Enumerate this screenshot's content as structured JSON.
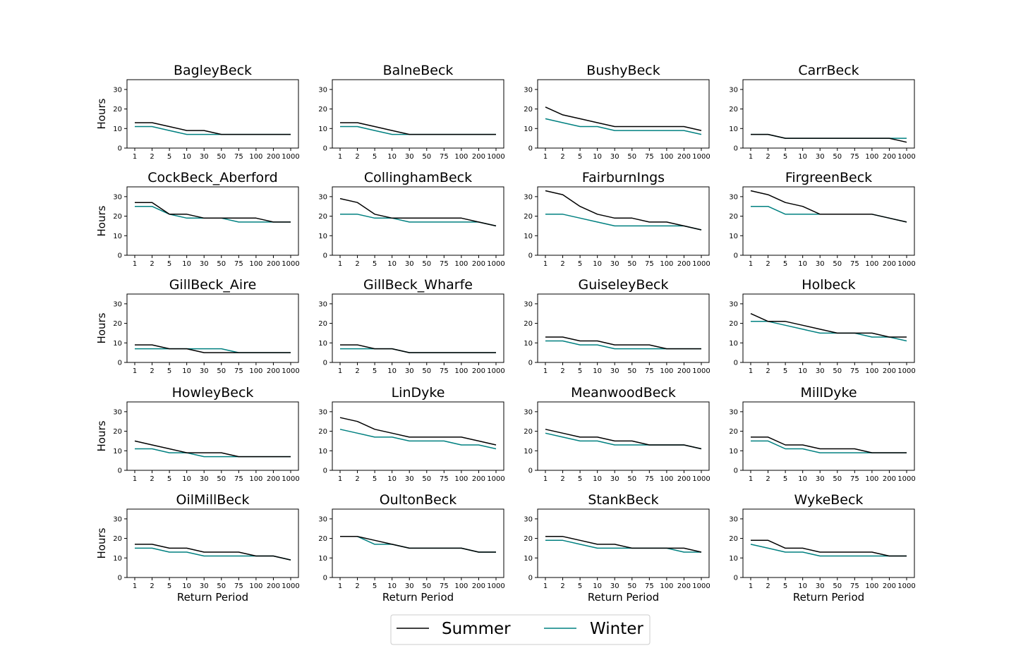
{
  "chart_data": {
    "type": "line",
    "layout": "small-multiples",
    "categories": [
      "1",
      "2",
      "5",
      "10",
      "30",
      "50",
      "75",
      "100",
      "200",
      "1000"
    ],
    "xlabel": "Return Period",
    "ylabel": "Hours",
    "ylim": [
      0,
      35
    ],
    "yticks": [
      0,
      10,
      20,
      30
    ],
    "grid": false,
    "legend": {
      "placement": "bottom-center",
      "entries": [
        {
          "name": "Summer",
          "color": "#000000"
        },
        {
          "name": "Winter",
          "color": "#008080"
        }
      ]
    },
    "panels": [
      {
        "title": "BagleyBeck",
        "series": [
          {
            "name": "Summer",
            "values": [
              13,
              13,
              11,
              9,
              9,
              7,
              7,
              7,
              7,
              7
            ]
          },
          {
            "name": "Winter",
            "values": [
              11,
              11,
              9,
              7,
              7,
              7,
              7,
              7,
              7,
              7
            ]
          }
        ]
      },
      {
        "title": "BalneBeck",
        "series": [
          {
            "name": "Summer",
            "values": [
              13,
              13,
              11,
              9,
              7,
              7,
              7,
              7,
              7,
              7
            ]
          },
          {
            "name": "Winter",
            "values": [
              11,
              11,
              9,
              7,
              7,
              7,
              7,
              7,
              7,
              7
            ]
          }
        ]
      },
      {
        "title": "BushyBeck",
        "series": [
          {
            "name": "Summer",
            "values": [
              21,
              17,
              15,
              13,
              11,
              11,
              11,
              11,
              11,
              9
            ]
          },
          {
            "name": "Winter",
            "values": [
              15,
              13,
              11,
              11,
              9,
              9,
              9,
              9,
              9,
              7
            ]
          }
        ]
      },
      {
        "title": "CarrBeck",
        "series": [
          {
            "name": "Summer",
            "values": [
              7,
              7,
              5,
              5,
              5,
              5,
              5,
              5,
              5,
              3
            ]
          },
          {
            "name": "Winter",
            "values": [
              7,
              7,
              5,
              5,
              5,
              5,
              5,
              5,
              5,
              5
            ]
          }
        ]
      },
      {
        "title": "CockBeck_Aberford",
        "series": [
          {
            "name": "Summer",
            "values": [
              27,
              27,
              21,
              21,
              19,
              19,
              19,
              19,
              17,
              17
            ]
          },
          {
            "name": "Winter",
            "values": [
              25,
              25,
              21,
              19,
              19,
              19,
              17,
              17,
              17,
              17
            ]
          }
        ]
      },
      {
        "title": "CollinghamBeck",
        "series": [
          {
            "name": "Summer",
            "values": [
              29,
              27,
              21,
              19,
              19,
              19,
              19,
              19,
              17,
              15
            ]
          },
          {
            "name": "Winter",
            "values": [
              21,
              21,
              19,
              19,
              17,
              17,
              17,
              17,
              17,
              15
            ]
          }
        ]
      },
      {
        "title": "FairburnIngs",
        "series": [
          {
            "name": "Summer",
            "values": [
              33,
              31,
              25,
              21,
              19,
              19,
              17,
              17,
              15,
              13
            ]
          },
          {
            "name": "Winter",
            "values": [
              21,
              21,
              19,
              17,
              15,
              15,
              15,
              15,
              15,
              13
            ]
          }
        ]
      },
      {
        "title": "FirgreenBeck",
        "series": [
          {
            "name": "Summer",
            "values": [
              33,
              31,
              27,
              25,
              21,
              21,
              21,
              21,
              19,
              17
            ]
          },
          {
            "name": "Winter",
            "values": [
              25,
              25,
              21,
              21,
              21,
              21,
              21,
              21,
              19,
              17
            ]
          }
        ]
      },
      {
        "title": "GillBeck_Aire",
        "series": [
          {
            "name": "Summer",
            "values": [
              9,
              9,
              7,
              7,
              5,
              5,
              5,
              5,
              5,
              5
            ]
          },
          {
            "name": "Winter",
            "values": [
              7,
              7,
              7,
              7,
              7,
              7,
              5,
              5,
              5,
              5
            ]
          }
        ]
      },
      {
        "title": "GillBeck_Wharfe",
        "series": [
          {
            "name": "Summer",
            "values": [
              9,
              9,
              7,
              7,
              5,
              5,
              5,
              5,
              5,
              5
            ]
          },
          {
            "name": "Winter",
            "values": [
              7,
              7,
              7,
              7,
              5,
              5,
              5,
              5,
              5,
              5
            ]
          }
        ]
      },
      {
        "title": "GuiseleyBeck",
        "series": [
          {
            "name": "Summer",
            "values": [
              13,
              13,
              11,
              11,
              9,
              9,
              9,
              7,
              7,
              7
            ]
          },
          {
            "name": "Winter",
            "values": [
              11,
              11,
              9,
              9,
              7,
              7,
              7,
              7,
              7,
              7
            ]
          }
        ]
      },
      {
        "title": "Holbeck",
        "series": [
          {
            "name": "Summer",
            "values": [
              25,
              21,
              21,
              19,
              17,
              15,
              15,
              15,
              13,
              13
            ]
          },
          {
            "name": "Winter",
            "values": [
              21,
              21,
              19,
              17,
              15,
              15,
              15,
              13,
              13,
              11
            ]
          }
        ]
      },
      {
        "title": "HowleyBeck",
        "series": [
          {
            "name": "Summer",
            "values": [
              15,
              13,
              11,
              9,
              9,
              9,
              7,
              7,
              7,
              7
            ]
          },
          {
            "name": "Winter",
            "values": [
              11,
              11,
              9,
              9,
              7,
              7,
              7,
              7,
              7,
              7
            ]
          }
        ]
      },
      {
        "title": "LinDyke",
        "series": [
          {
            "name": "Summer",
            "values": [
              27,
              25,
              21,
              19,
              17,
              17,
              17,
              17,
              15,
              13
            ]
          },
          {
            "name": "Winter",
            "values": [
              21,
              19,
              17,
              17,
              15,
              15,
              15,
              13,
              13,
              11
            ]
          }
        ]
      },
      {
        "title": "MeanwoodBeck",
        "series": [
          {
            "name": "Summer",
            "values": [
              21,
              19,
              17,
              17,
              15,
              15,
              13,
              13,
              13,
              11
            ]
          },
          {
            "name": "Winter",
            "values": [
              19,
              17,
              15,
              15,
              13,
              13,
              13,
              13,
              13,
              11
            ]
          }
        ]
      },
      {
        "title": "MillDyke",
        "series": [
          {
            "name": "Summer",
            "values": [
              17,
              17,
              13,
              13,
              11,
              11,
              11,
              9,
              9,
              9
            ]
          },
          {
            "name": "Winter",
            "values": [
              15,
              15,
              11,
              11,
              9,
              9,
              9,
              9,
              9,
              9
            ]
          }
        ]
      },
      {
        "title": "OilMillBeck",
        "series": [
          {
            "name": "Summer",
            "values": [
              17,
              17,
              15,
              15,
              13,
              13,
              13,
              11,
              11,
              9
            ]
          },
          {
            "name": "Winter",
            "values": [
              15,
              15,
              13,
              13,
              11,
              11,
              11,
              11,
              11,
              9
            ]
          }
        ]
      },
      {
        "title": "OultonBeck",
        "series": [
          {
            "name": "Summer",
            "values": [
              21,
              21,
              19,
              17,
              15,
              15,
              15,
              15,
              13,
              13
            ]
          },
          {
            "name": "Winter",
            "values": [
              21,
              21,
              17,
              17,
              15,
              15,
              15,
              15,
              13,
              13
            ]
          }
        ]
      },
      {
        "title": "StankBeck",
        "series": [
          {
            "name": "Summer",
            "values": [
              21,
              21,
              19,
              17,
              17,
              15,
              15,
              15,
              15,
              13
            ]
          },
          {
            "name": "Winter",
            "values": [
              19,
              19,
              17,
              15,
              15,
              15,
              15,
              15,
              13,
              13
            ]
          }
        ]
      },
      {
        "title": "WykeBeck",
        "series": [
          {
            "name": "Summer",
            "values": [
              19,
              19,
              15,
              15,
              13,
              13,
              13,
              13,
              11,
              11
            ]
          },
          {
            "name": "Winter",
            "values": [
              17,
              15,
              13,
              13,
              11,
              11,
              11,
              11,
              11,
              11
            ]
          }
        ]
      }
    ]
  }
}
